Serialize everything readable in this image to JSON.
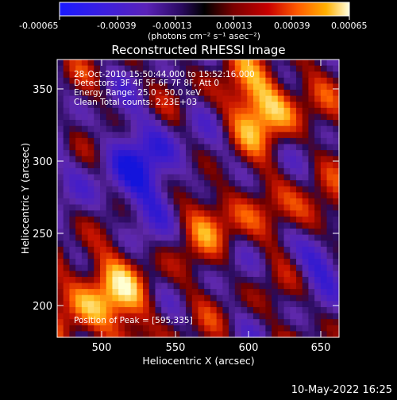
{
  "colorbar": {
    "ticks": [
      "-0.00065",
      "-0.00039",
      "-0.00013",
      "0.00013",
      "0.00039",
      "0.00065"
    ],
    "units": "(photons cm⁻² s⁻¹ asec⁻²)"
  },
  "title": "Reconstructed RHESSI Image",
  "info": {
    "time_range": "28-Oct-2010 15:50:44.000 to 15:52:16.000",
    "detectors": "Detectors: 3F 4F 5F 6F 7F 8F, Att 0",
    "energy_range": "Energy Range: 25.0 - 50.0 keV",
    "clean": "Clean    Total counts: 2.23E+03",
    "peak_position": "Position of Peak = [595,335]"
  },
  "axes": {
    "x_label": "Heliocentric X (arcsec)",
    "y_label": "Heliocentric Y (arcsec)",
    "x_ticks": [
      "500",
      "550",
      "600",
      "650"
    ],
    "y_ticks": [
      "200",
      "250",
      "300",
      "350"
    ],
    "x_range": [
      470,
      660
    ],
    "y_range": [
      180,
      375
    ]
  },
  "timestamp": "10-May-2022 16:25"
}
